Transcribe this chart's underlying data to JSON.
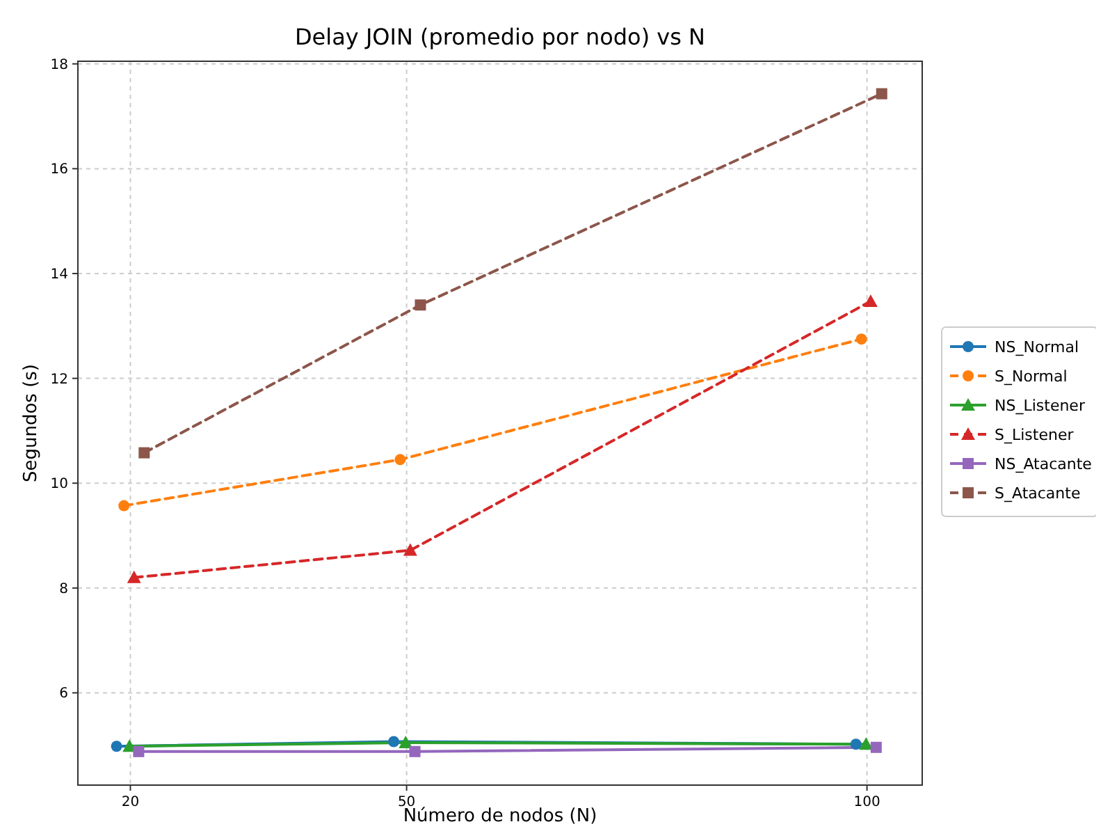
{
  "chart_data": {
    "type": "line",
    "title": "Delay JOIN (promedio por nodo) vs N",
    "xlabel": "Número de nodos (N)",
    "ylabel": "Segundos (s)",
    "xlim": [
      14.3,
      106
    ],
    "xticks": [
      20,
      50,
      100
    ],
    "ylim": [
      4.24,
      18.05
    ],
    "yticks": [
      6,
      8,
      10,
      12,
      14,
      16,
      18
    ],
    "grid": true,
    "legend": "right",
    "series": [
      {
        "name": "NS_Normal",
        "color": "#1f77b4",
        "marker": "circle",
        "line_style": "solid",
        "x": [
          18.5,
          48.6,
          98.8
        ],
        "values": [
          4.98,
          5.07,
          5.02
        ]
      },
      {
        "name": "S_Normal",
        "color": "#ff7f0e",
        "marker": "circle",
        "line_style": "dashed",
        "x": [
          19.3,
          49.3,
          99.4
        ],
        "values": [
          9.57,
          10.45,
          12.75
        ]
      },
      {
        "name": "NS_Listener",
        "color": "#2ca02c",
        "marker": "triangle",
        "line_style": "solid",
        "x": [
          19.9,
          49.9,
          99.9
        ],
        "values": [
          4.98,
          5.05,
          5.02
        ]
      },
      {
        "name": "S_Listener",
        "color": "#d62728",
        "marker": "triangle",
        "line_style": "dashed",
        "x": [
          20.4,
          50.4,
          100.4
        ],
        "values": [
          8.2,
          8.72,
          13.47
        ]
      },
      {
        "name": "NS_Atacante",
        "color": "#9467bd",
        "marker": "square",
        "line_style": "solid",
        "x": [
          20.9,
          50.9,
          101
        ],
        "values": [
          4.88,
          4.88,
          4.96
        ]
      },
      {
        "name": "S_Atacante",
        "color": "#8c564b",
        "marker": "square",
        "line_style": "dashed",
        "x": [
          21.5,
          51.5,
          101.6
        ],
        "values": [
          10.58,
          13.4,
          17.43
        ]
      }
    ]
  }
}
